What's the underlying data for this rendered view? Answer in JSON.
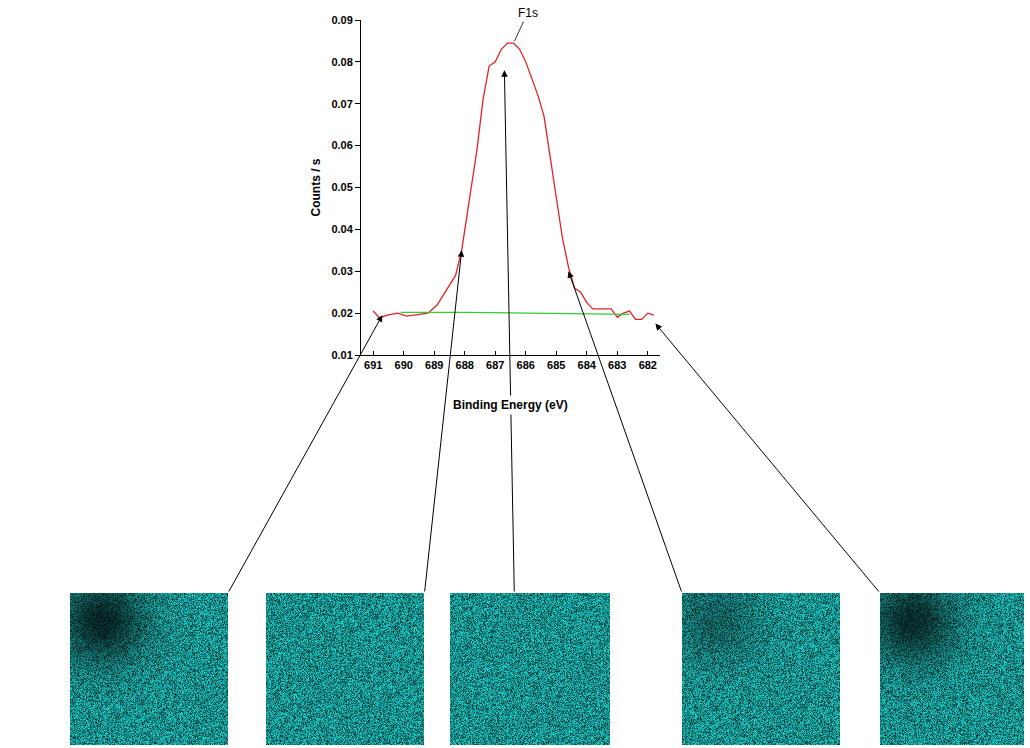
{
  "chart_data": {
    "type": "line",
    "x_label": "Binding Energy (eV)",
    "y_label": "Counts / s",
    "annotations": [
      {
        "text": "F1s",
        "x": 686.4,
        "y": 0.0845
      }
    ],
    "series": [
      {
        "color": "#e02424",
        "x": [
          691.0,
          690.8,
          690.5,
          690.2,
          689.9,
          689.5,
          689.2,
          688.9,
          688.6,
          688.3,
          688.1,
          687.9,
          687.6,
          687.4,
          687.2,
          687.0,
          686.8,
          686.6,
          686.4,
          686.2,
          686.0,
          685.8,
          685.6,
          685.4,
          685.2,
          685.0,
          684.8,
          684.6,
          684.4,
          684.2,
          684.0,
          683.8,
          683.5,
          683.2,
          683.0,
          682.8,
          682.6,
          682.4,
          682.2,
          682.0,
          681.8
        ],
        "values": [
          0.0205,
          0.0189,
          0.0196,
          0.02,
          0.0193,
          0.0196,
          0.02,
          0.022,
          0.0255,
          0.029,
          0.035,
          0.045,
          0.059,
          0.071,
          0.079,
          0.08,
          0.083,
          0.0845,
          0.0845,
          0.083,
          0.08,
          0.076,
          0.072,
          0.067,
          0.057,
          0.047,
          0.038,
          0.031,
          0.026,
          0.025,
          0.0225,
          0.021,
          0.021,
          0.021,
          0.019,
          0.02,
          0.0205,
          0.0185,
          0.0185,
          0.02,
          0.0195
        ]
      },
      {
        "color": "#33cc33",
        "x": [
          690.1,
          688.0,
          682.6
        ],
        "values": [
          0.0202,
          0.0202,
          0.0197
        ]
      }
    ],
    "xlim": [
      691.4,
      681.6
    ],
    "xticks": [
      691,
      690,
      689,
      688,
      687,
      686,
      685,
      684,
      683,
      682
    ],
    "ylim": [
      0.01,
      0.09
    ],
    "yticks": [
      0.01,
      0.02,
      0.03,
      0.04,
      0.05,
      0.06,
      0.07,
      0.08,
      0.09
    ],
    "grid": false,
    "image_points": [
      {
        "x": 690.7,
        "y": 0.0195
      },
      {
        "x": 688.1,
        "y": 0.035
      },
      {
        "x": 686.7,
        "y": 0.078
      },
      {
        "x": 684.6,
        "y": 0.03
      },
      {
        "x": 681.75,
        "y": 0.0175
      }
    ]
  }
}
